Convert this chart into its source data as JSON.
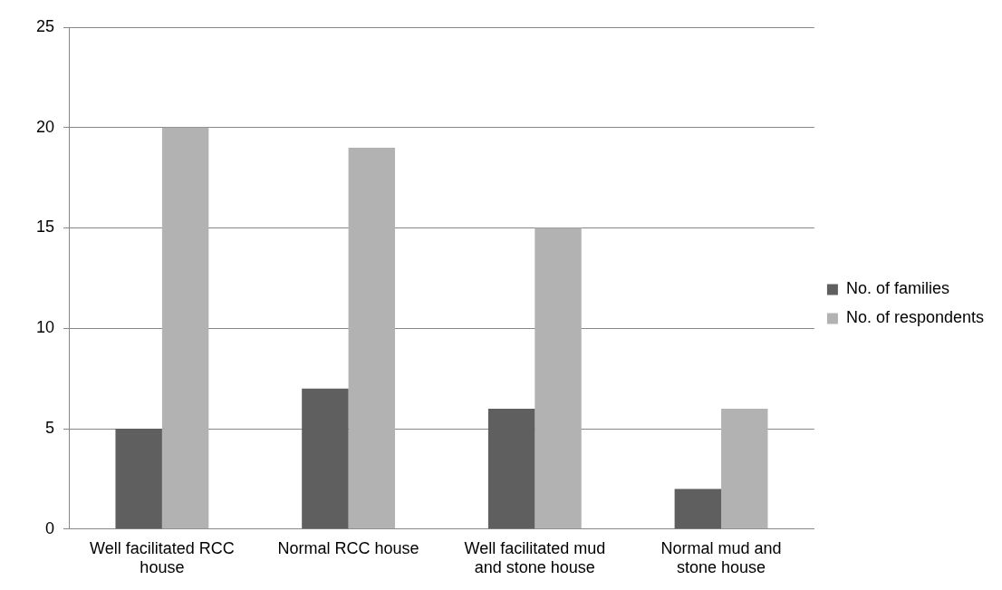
{
  "chart_data": {
    "type": "bar",
    "categories": [
      "Well facilitated RCC house",
      "Normal RCC house",
      "Well facilitated mud and stone house",
      "Normal mud and stone house"
    ],
    "series": [
      {
        "name": "No. of families",
        "color": "#5f5f5f",
        "values": [
          5,
          7,
          6,
          2
        ]
      },
      {
        "name": "No. of respondents",
        "color": "#b2b2b2",
        "values": [
          20,
          19,
          15,
          6
        ]
      }
    ],
    "ylim": [
      0,
      25
    ],
    "yticks": [
      0,
      5,
      10,
      15,
      20,
      25
    ],
    "grid": "y",
    "legend": "right"
  }
}
